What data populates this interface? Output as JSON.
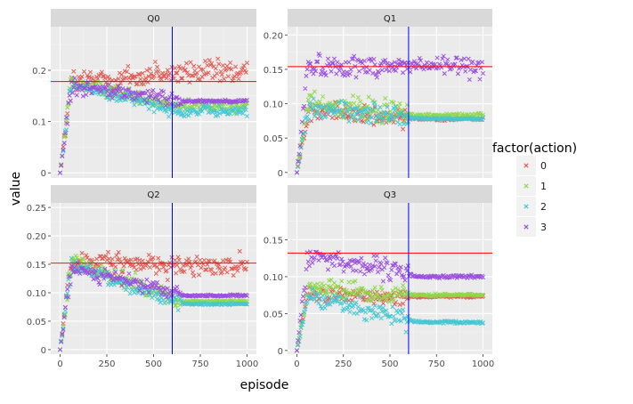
{
  "chart_data": {
    "type": "scatter",
    "xlabel": "episode",
    "ylabel": "value",
    "legend": {
      "title": "factor(action)",
      "placement": "right",
      "entries": [
        {
          "label": "0",
          "color": "#e15c54"
        },
        {
          "label": "1",
          "color": "#8fd84a"
        },
        {
          "label": "2",
          "color": "#45c7d2"
        },
        {
          "label": "3",
          "color": "#9b4fdd"
        }
      ]
    },
    "marker": "x",
    "grid": true,
    "facets": [
      {
        "title": "Q0",
        "xlim": [
          -50,
          1050
        ],
        "ylim": [
          -0.01,
          0.285
        ],
        "yticks": [
          {
            "v": 0,
            "t": "0"
          },
          {
            "v": 0.1,
            "t": "0.1"
          },
          {
            "v": 0.2,
            "t": "0.2"
          }
        ],
        "xticks": [],
        "hline": 0.178,
        "vline": 600,
        "series": [
          {
            "action": "0",
            "peak": 0.175,
            "final": 0.195,
            "noise": 0.025,
            "spread_x0": 0,
            "spread_x1": 1000
          },
          {
            "action": "1",
            "peak": 0.175,
            "final": 0.13,
            "noise": 0.012,
            "spread_x0": 0,
            "spread_x1": 1000
          },
          {
            "action": "2",
            "peak": 0.17,
            "final": 0.12,
            "noise": 0.012,
            "spread_x0": 0,
            "spread_x1": 1000
          },
          {
            "action": "3",
            "peak": 0.17,
            "final": 0.14,
            "noise": 0.015,
            "spread_x0": 0,
            "spread_x1": 650
          }
        ]
      },
      {
        "title": "Q1",
        "xlim": [
          -50,
          1050
        ],
        "ylim": [
          -0.008,
          0.212
        ],
        "yticks": [
          {
            "v": 0,
            "t": "0"
          },
          {
            "v": 0.05,
            "t": "0.05"
          },
          {
            "v": 0.1,
            "t": "0.10"
          },
          {
            "v": 0.15,
            "t": "0.15"
          },
          {
            "v": 0.2,
            "t": "0.20"
          }
        ],
        "xticks": [],
        "hline": 0.154,
        "vline": 600,
        "series": [
          {
            "action": "0",
            "peak": 0.09,
            "final": 0.078,
            "noise": 0.015,
            "spread_x0": 0,
            "spread_x1": 600
          },
          {
            "action": "1",
            "peak": 0.1,
            "final": 0.083,
            "noise": 0.018,
            "spread_x0": 0,
            "spread_x1": 600
          },
          {
            "action": "2",
            "peak": 0.095,
            "final": 0.078,
            "noise": 0.014,
            "spread_x0": 0,
            "spread_x1": 600
          },
          {
            "action": "3",
            "peak": 0.155,
            "final": 0.155,
            "noise": 0.015,
            "spread_x0": 0,
            "spread_x1": 1000
          }
        ]
      },
      {
        "title": "Q2",
        "xlim": [
          -50,
          1050
        ],
        "ylim": [
          -0.008,
          0.258
        ],
        "yticks": [
          {
            "v": 0,
            "t": "0"
          },
          {
            "v": 0.05,
            "t": "0.05"
          },
          {
            "v": 0.1,
            "t": "0.10"
          },
          {
            "v": 0.15,
            "t": "0.15"
          },
          {
            "v": 0.2,
            "t": "0.20"
          },
          {
            "v": 0.25,
            "t": "0.25"
          }
        ],
        "xticks": [
          {
            "v": 0,
            "t": "0"
          },
          {
            "v": 250,
            "t": "250"
          },
          {
            "v": 500,
            "t": "500"
          },
          {
            "v": 750,
            "t": "750"
          },
          {
            "v": 1000,
            "t": "1000"
          }
        ],
        "hline": 0.152,
        "vline": 600,
        "series": [
          {
            "action": "0",
            "peak": 0.155,
            "final": 0.148,
            "noise": 0.018,
            "spread_x0": 0,
            "spread_x1": 1000
          },
          {
            "action": "1",
            "peak": 0.155,
            "final": 0.085,
            "noise": 0.014,
            "spread_x0": 0,
            "spread_x1": 650
          },
          {
            "action": "2",
            "peak": 0.15,
            "final": 0.08,
            "noise": 0.012,
            "spread_x0": 0,
            "spread_x1": 650
          },
          {
            "action": "3",
            "peak": 0.145,
            "final": 0.095,
            "noise": 0.012,
            "spread_x0": 0,
            "spread_x1": 650
          }
        ]
      },
      {
        "title": "Q3",
        "xlim": [
          -50,
          1050
        ],
        "ylim": [
          -0.005,
          0.2
        ],
        "yticks": [
          {
            "v": 0,
            "t": "0"
          },
          {
            "v": 0.05,
            "t": "0.05"
          },
          {
            "v": 0.1,
            "t": "0.10"
          },
          {
            "v": 0.15,
            "t": "0.15"
          }
        ],
        "xticks": [
          {
            "v": 0,
            "t": "0"
          },
          {
            "v": 250,
            "t": "250"
          },
          {
            "v": 500,
            "t": "500"
          },
          {
            "v": 750,
            "t": "750"
          },
          {
            "v": 1000,
            "t": "1000"
          }
        ],
        "hline": 0.132,
        "vline": 600,
        "series": [
          {
            "action": "0",
            "peak": 0.075,
            "final": 0.073,
            "noise": 0.01,
            "spread_x0": 0,
            "spread_x1": 600
          },
          {
            "action": "1",
            "peak": 0.085,
            "final": 0.075,
            "noise": 0.012,
            "spread_x0": 0,
            "spread_x1": 600
          },
          {
            "action": "2",
            "peak": 0.075,
            "final": 0.038,
            "noise": 0.012,
            "spread_x0": 0,
            "spread_x1": 600
          },
          {
            "action": "3",
            "peak": 0.13,
            "final": 0.1,
            "noise": 0.014,
            "spread_x0": 0,
            "spread_x1": 600
          }
        ]
      }
    ]
  }
}
